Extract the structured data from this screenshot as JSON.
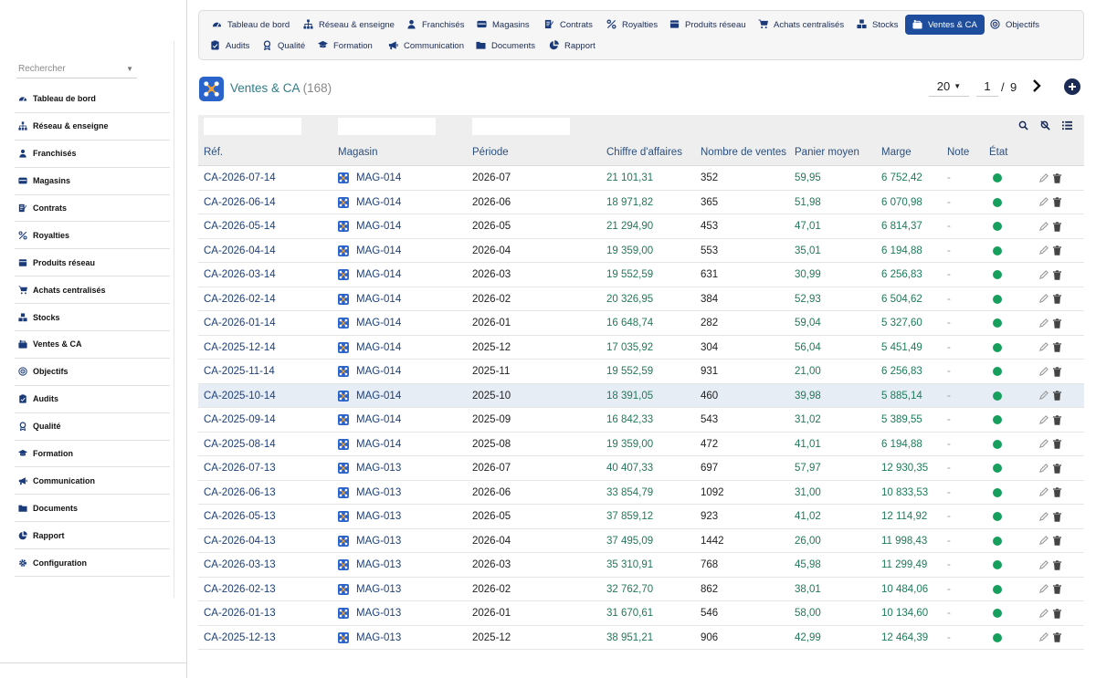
{
  "sidebar": {
    "search_placeholder": "Rechercher",
    "items": [
      {
        "label": "Tableau de bord",
        "icon": "dashboard-icon"
      },
      {
        "label": "Réseau & enseigne",
        "icon": "network-icon"
      },
      {
        "label": "Franchisés",
        "icon": "user-icon"
      },
      {
        "label": "Magasins",
        "icon": "store-icon"
      },
      {
        "label": "Contrats",
        "icon": "contract-icon"
      },
      {
        "label": "Royalties",
        "icon": "percent-icon"
      },
      {
        "label": "Produits réseau",
        "icon": "product-icon"
      },
      {
        "label": "Achats centralisés",
        "icon": "cart-icon"
      },
      {
        "label": "Stocks",
        "icon": "boxes-icon"
      },
      {
        "label": "Ventes & CA",
        "icon": "sales-icon"
      },
      {
        "label": "Objectifs",
        "icon": "target-icon"
      },
      {
        "label": "Audits",
        "icon": "clipboard-icon"
      },
      {
        "label": "Qualité",
        "icon": "award-icon"
      },
      {
        "label": "Formation",
        "icon": "graduation-icon"
      },
      {
        "label": "Communication",
        "icon": "megaphone-icon"
      },
      {
        "label": "Documents",
        "icon": "folder-icon"
      },
      {
        "label": "Rapport",
        "icon": "pie-chart-icon"
      },
      {
        "label": "Configuration",
        "icon": "gear-icon"
      }
    ]
  },
  "tabs": {
    "row1": [
      {
        "label": "Tableau de bord",
        "icon": "dashboard-icon"
      },
      {
        "label": "Réseau & enseigne",
        "icon": "network-icon"
      },
      {
        "label": "Franchisés",
        "icon": "user-icon"
      },
      {
        "label": "Magasins",
        "icon": "store-icon"
      },
      {
        "label": "Contrats",
        "icon": "contract-icon"
      },
      {
        "label": "Royalties",
        "icon": "percent-icon"
      },
      {
        "label": "Produits réseau",
        "icon": "product-icon"
      },
      {
        "label": "Achats centralisés",
        "icon": "cart-icon"
      },
      {
        "label": "Stocks",
        "icon": "boxes-icon"
      },
      {
        "label": "Ventes & CA",
        "icon": "sales-icon",
        "active": true
      },
      {
        "label": "Objectifs",
        "icon": "target-icon"
      }
    ],
    "row2": [
      {
        "label": "Audits",
        "icon": "clipboard-icon"
      },
      {
        "label": "Qualité",
        "icon": "award-icon"
      },
      {
        "label": "Formation",
        "icon": "graduation-icon"
      },
      {
        "label": "Communication",
        "icon": "megaphone-icon"
      },
      {
        "label": "Documents",
        "icon": "folder-icon"
      },
      {
        "label": "Rapport",
        "icon": "pie-chart-icon"
      }
    ]
  },
  "header": {
    "title": "Ventes & CA",
    "count": "(168)",
    "page_size": "20",
    "page": "1",
    "page_sep": "/",
    "page_total": "9"
  },
  "table": {
    "columns": [
      "Réf.",
      "Magasin",
      "Période",
      "Chiffre d'affaires",
      "Nombre de ventes",
      "Panier moyen",
      "Marge",
      "Note",
      "État"
    ],
    "rows": [
      {
        "ref": "CA-2026-07-14",
        "mag": "MAG-014",
        "per": "2026-07",
        "ca": "21 101,31",
        "nb": "352",
        "pm": "59,95",
        "marge": "6 752,42",
        "note": "-"
      },
      {
        "ref": "CA-2026-06-14",
        "mag": "MAG-014",
        "per": "2026-06",
        "ca": "18 971,82",
        "nb": "365",
        "pm": "51,98",
        "marge": "6 070,98",
        "note": "-"
      },
      {
        "ref": "CA-2026-05-14",
        "mag": "MAG-014",
        "per": "2026-05",
        "ca": "21 294,90",
        "nb": "453",
        "pm": "47,01",
        "marge": "6 814,37",
        "note": "-"
      },
      {
        "ref": "CA-2026-04-14",
        "mag": "MAG-014",
        "per": "2026-04",
        "ca": "19 359,00",
        "nb": "553",
        "pm": "35,01",
        "marge": "6 194,88",
        "note": "-"
      },
      {
        "ref": "CA-2026-03-14",
        "mag": "MAG-014",
        "per": "2026-03",
        "ca": "19 552,59",
        "nb": "631",
        "pm": "30,99",
        "marge": "6 256,83",
        "note": "-"
      },
      {
        "ref": "CA-2026-02-14",
        "mag": "MAG-014",
        "per": "2026-02",
        "ca": "20 326,95",
        "nb": "384",
        "pm": "52,93",
        "marge": "6 504,62",
        "note": "-"
      },
      {
        "ref": "CA-2026-01-14",
        "mag": "MAG-014",
        "per": "2026-01",
        "ca": "16 648,74",
        "nb": "282",
        "pm": "59,04",
        "marge": "5 327,60",
        "note": "-"
      },
      {
        "ref": "CA-2025-12-14",
        "mag": "MAG-014",
        "per": "2025-12",
        "ca": "17 035,92",
        "nb": "304",
        "pm": "56,04",
        "marge": "5 451,49",
        "note": "-"
      },
      {
        "ref": "CA-2025-11-14",
        "mag": "MAG-014",
        "per": "2025-11",
        "ca": "19 552,59",
        "nb": "931",
        "pm": "21,00",
        "marge": "6 256,83",
        "note": "-"
      },
      {
        "ref": "CA-2025-10-14",
        "mag": "MAG-014",
        "per": "2025-10",
        "ca": "18 391,05",
        "nb": "460",
        "pm": "39,98",
        "marge": "5 885,14",
        "note": "-",
        "highlight": true
      },
      {
        "ref": "CA-2025-09-14",
        "mag": "MAG-014",
        "per": "2025-09",
        "ca": "16 842,33",
        "nb": "543",
        "pm": "31,02",
        "marge": "5 389,55",
        "note": "-"
      },
      {
        "ref": "CA-2025-08-14",
        "mag": "MAG-014",
        "per": "2025-08",
        "ca": "19 359,00",
        "nb": "472",
        "pm": "41,01",
        "marge": "6 194,88",
        "note": "-"
      },
      {
        "ref": "CA-2026-07-13",
        "mag": "MAG-013",
        "per": "2026-07",
        "ca": "40 407,33",
        "nb": "697",
        "pm": "57,97",
        "marge": "12 930,35",
        "note": "-"
      },
      {
        "ref": "CA-2026-06-13",
        "mag": "MAG-013",
        "per": "2026-06",
        "ca": "33 854,79",
        "nb": "1092",
        "pm": "31,00",
        "marge": "10 833,53",
        "note": "-"
      },
      {
        "ref": "CA-2026-05-13",
        "mag": "MAG-013",
        "per": "2026-05",
        "ca": "37 859,12",
        "nb": "923",
        "pm": "41,02",
        "marge": "12 114,92",
        "note": "-"
      },
      {
        "ref": "CA-2026-04-13",
        "mag": "MAG-013",
        "per": "2026-04",
        "ca": "37 495,09",
        "nb": "1442",
        "pm": "26,00",
        "marge": "11 998,43",
        "note": "-"
      },
      {
        "ref": "CA-2026-03-13",
        "mag": "MAG-013",
        "per": "2026-03",
        "ca": "35 310,91",
        "nb": "768",
        "pm": "45,98",
        "marge": "11 299,49",
        "note": "-"
      },
      {
        "ref": "CA-2026-02-13",
        "mag": "MAG-013",
        "per": "2026-02",
        "ca": "32 762,70",
        "nb": "862",
        "pm": "38,01",
        "marge": "10 484,06",
        "note": "-"
      },
      {
        "ref": "CA-2026-01-13",
        "mag": "MAG-013",
        "per": "2026-01",
        "ca": "31 670,61",
        "nb": "546",
        "pm": "58,00",
        "marge": "10 134,60",
        "note": "-"
      },
      {
        "ref": "CA-2025-12-13",
        "mag": "MAG-013",
        "per": "2025-12",
        "ca": "38 951,21",
        "nb": "906",
        "pm": "42,99",
        "marge": "12 464,39",
        "note": "-"
      }
    ]
  },
  "colors": {
    "accent": "#1d4d9c",
    "link": "#1c3f7a",
    "value_green": "#1f7a5a",
    "status_green": "#17a05d",
    "title": "#2e7d8a"
  }
}
